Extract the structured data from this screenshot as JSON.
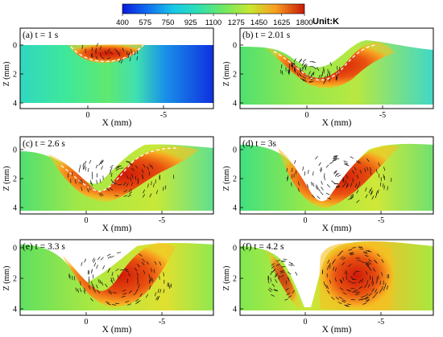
{
  "colorbar": {
    "ticks": [
      "400",
      "575",
      "750",
      "925",
      "1100",
      "1275",
      "1450",
      "1625",
      "1800"
    ],
    "unit": "Unit:K",
    "colors": [
      "#0b1ee0",
      "#1070f0",
      "#18c8e8",
      "#30e0b0",
      "#70e860",
      "#c8e830",
      "#f8c020",
      "#f07010",
      "#c81808"
    ]
  },
  "axes": {
    "xlabel": "X (mm)",
    "ylabel": "Z (mm)",
    "x_ticks": [
      "0",
      "-5"
    ],
    "z_ticks": [
      "0",
      "2",
      "4"
    ]
  },
  "panels": [
    {
      "label": "(a) t = 1 s"
    },
    {
      "label": "(b) t = 2.01 s"
    },
    {
      "label": "(c) t = 2.6 s"
    },
    {
      "label": "(d) t = 3s"
    },
    {
      "label": "(e) t = 3.3 s"
    },
    {
      "label": "(f) t = 4.2 s"
    }
  ]
}
